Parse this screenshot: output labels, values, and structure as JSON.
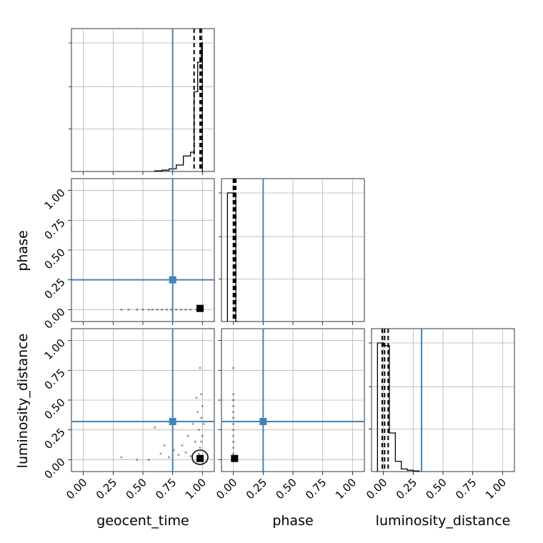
{
  "chart_data": {
    "type": "corner",
    "parameters": [
      "geocent_time",
      "phase",
      "luminosity_distance"
    ],
    "axis_range": [
      -0.1,
      1.1
    ],
    "tick_labels": [
      "0.00",
      "0.25",
      "0.50",
      "0.75",
      "1.00"
    ],
    "tick_values": [
      0.0,
      0.25,
      0.5,
      0.75,
      1.0
    ],
    "grid": true,
    "truths": {
      "geocent_time": 0.75,
      "phase": 0.25,
      "luminosity_distance": 0.32
    },
    "truth_color": "#4682b4",
    "quantiles": {
      "geocent_time": [
        0.93,
        0.98,
        0.99
      ],
      "phase": [
        0.0,
        0.01,
        0.02
      ],
      "luminosity_distance": [
        -0.01,
        0.01,
        0.04
      ]
    },
    "histograms": {
      "geocent_time": {
        "edges": [
          0.6,
          0.66,
          0.72,
          0.78,
          0.84,
          0.9,
          0.93,
          0.96,
          0.99,
          1.0
        ],
        "values": [
          0.005,
          0.01,
          0.02,
          0.05,
          0.12,
          0.15,
          0.62,
          0.85,
          1.0
        ]
      },
      "phase": {
        "edges": [
          -0.05,
          0.0,
          0.02,
          0.04
        ],
        "values": [
          1.0,
          1.0,
          0.0
        ]
      },
      "luminosity_distance": {
        "edges": [
          -0.05,
          0.0,
          0.05,
          0.1,
          0.15,
          0.2,
          0.25,
          0.3
        ],
        "values": [
          1.0,
          0.98,
          0.3,
          0.08,
          0.02,
          0.01,
          0.005
        ]
      }
    },
    "samples_2d": {
      "geocent_time_phase": [
        [
          0.32,
          0.0
        ],
        [
          0.38,
          0.0
        ],
        [
          0.45,
          0.0
        ],
        [
          0.5,
          0.0
        ],
        [
          0.55,
          0.0
        ],
        [
          0.58,
          0.0
        ],
        [
          0.62,
          0.0
        ],
        [
          0.66,
          0.0
        ],
        [
          0.7,
          0.0
        ],
        [
          0.74,
          0.0
        ],
        [
          0.78,
          0.0
        ],
        [
          0.82,
          0.0
        ],
        [
          0.86,
          0.0
        ],
        [
          0.9,
          0.0
        ],
        [
          0.95,
          0.0
        ],
        [
          1.0,
          0.0
        ]
      ],
      "geocent_time_luminosity_distance": [
        [
          0.32,
          0.02
        ],
        [
          0.45,
          0.0
        ],
        [
          0.55,
          0.0
        ],
        [
          0.6,
          0.27
        ],
        [
          0.65,
          0.05
        ],
        [
          0.68,
          0.12
        ],
        [
          0.72,
          0.02
        ],
        [
          0.76,
          0.08
        ],
        [
          0.8,
          0.04
        ],
        [
          0.83,
          0.12
        ],
        [
          0.86,
          0.06
        ],
        [
          0.88,
          0.2
        ],
        [
          0.9,
          0.03
        ],
        [
          0.92,
          0.3
        ],
        [
          0.94,
          0.15
        ],
        [
          0.95,
          0.52
        ],
        [
          0.96,
          0.4
        ],
        [
          0.97,
          0.25
        ],
        [
          0.98,
          0.77
        ],
        [
          0.98,
          0.1
        ],
        [
          0.99,
          0.55
        ],
        [
          0.99,
          0.35
        ],
        [
          1.0,
          0.45
        ],
        [
          1.0,
          0.2
        ],
        [
          1.01,
          0.3
        ],
        [
          0.97,
          0.05
        ],
        [
          0.99,
          0.15
        ]
      ],
      "phase_luminosity_distance": [
        [
          0.0,
          0.77
        ],
        [
          0.0,
          0.55
        ],
        [
          0.0,
          0.5
        ],
        [
          0.0,
          0.45
        ],
        [
          0.0,
          0.4
        ],
        [
          0.0,
          0.35
        ],
        [
          0.0,
          0.3
        ],
        [
          0.0,
          0.25
        ],
        [
          0.0,
          0.2
        ],
        [
          0.0,
          0.15
        ],
        [
          0.0,
          0.1
        ],
        [
          0.0,
          0.05
        ],
        [
          0.0,
          0.0
        ]
      ]
    },
    "xlabels": [
      "geocent_time",
      "phase",
      "luminosity_distance"
    ],
    "ylabels": [
      "phase",
      "luminosity_distance"
    ]
  }
}
